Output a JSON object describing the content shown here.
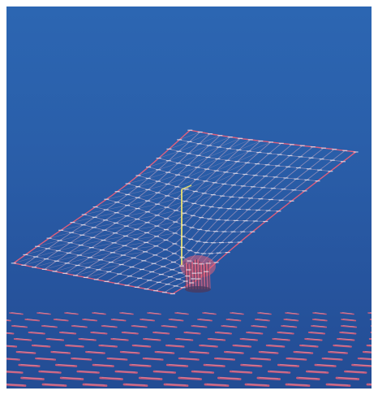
{
  "scene": {
    "background_top": "#2c66b2",
    "background_bottom": "#234c94",
    "mesh": {
      "grid_line_color": "#c9a6c0",
      "edge_line_color": "#e8607a",
      "node_color": "#e9eef8",
      "throat_fill": "#e0607a",
      "throat_dark": "#4a3a60",
      "axis_color": "#e8e070"
    },
    "floor": {
      "marker_color": "#e0607a",
      "marker_highlight": "#f0a0b0"
    }
  }
}
